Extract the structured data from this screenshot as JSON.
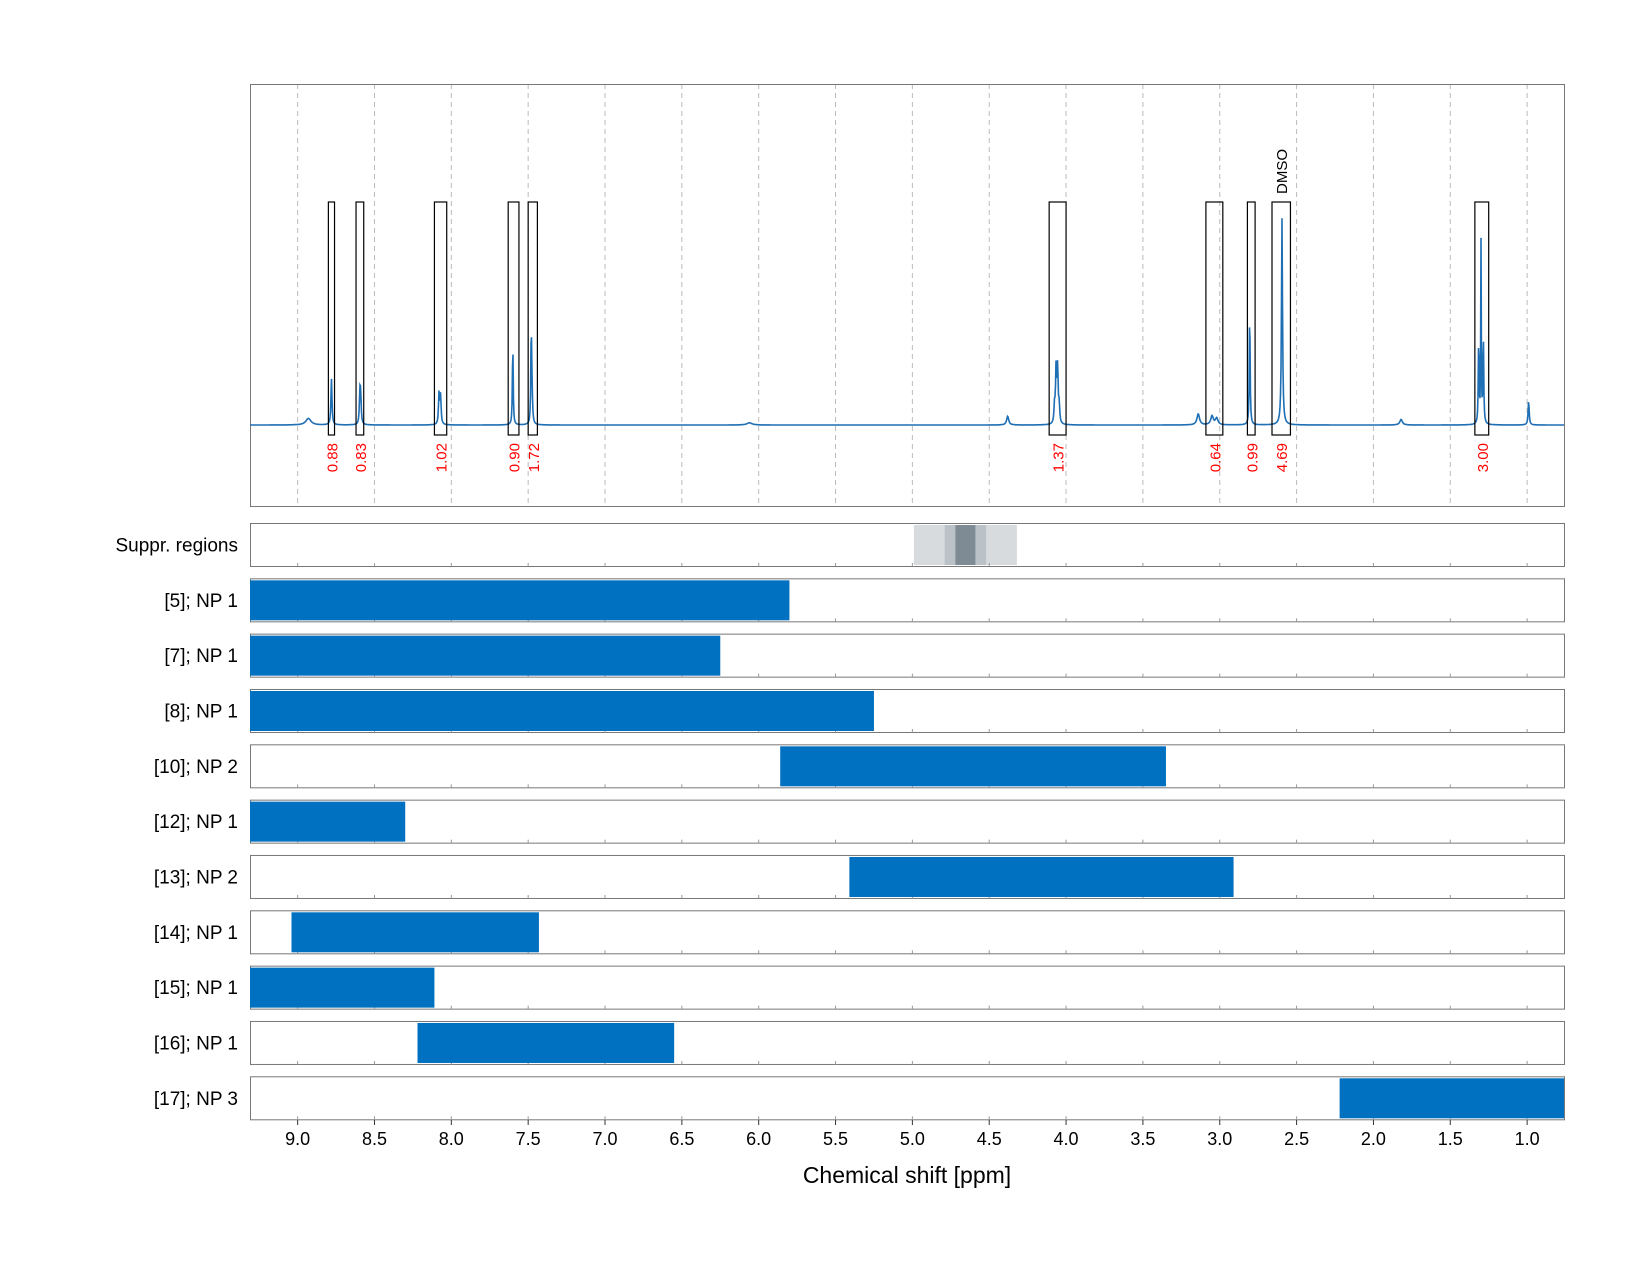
{
  "chart_data": {
    "type": "nmr-spectrum-with-ranges",
    "xlabel": "Chemical shift [ppm]",
    "xlim": [
      9.31,
      0.76
    ],
    "x_ticks": [
      "9.0",
      "8.5",
      "8.0",
      "7.5",
      "7.0",
      "6.5",
      "6.0",
      "5.5",
      "5.0",
      "4.5",
      "4.0",
      "3.5",
      "3.0",
      "2.5",
      "2.0",
      "1.5",
      "1.0"
    ],
    "colors": {
      "spectrum": "#1f6fb4",
      "integral": "#ff0000",
      "bar": "#0070c0",
      "suppression": "#7a8891",
      "grid": "#bbbbbb"
    },
    "integrals": [
      {
        "label": "0.88",
        "range": [
          8.8,
          8.76
        ]
      },
      {
        "label": "0.83",
        "range": [
          8.62,
          8.57
        ]
      },
      {
        "label": "1.02",
        "range": [
          8.11,
          8.03
        ]
      },
      {
        "label": "0.90",
        "range": [
          7.63,
          7.56
        ]
      },
      {
        "label": "1.72",
        "range": [
          7.5,
          7.44
        ]
      },
      {
        "label": "1.37",
        "range": [
          4.11,
          4.0
        ]
      },
      {
        "label": "0.64",
        "range": [
          3.09,
          2.98
        ]
      },
      {
        "label": "0.99",
        "range": [
          2.82,
          2.77
        ]
      },
      {
        "label": "4.69",
        "range": [
          2.66,
          2.54
        ],
        "annotation": "DMSO"
      },
      {
        "label": "3.00",
        "range": [
          1.34,
          1.25
        ]
      }
    ],
    "peaks": [
      {
        "ppm": 8.93,
        "height": 0.03,
        "width": 0.02
      },
      {
        "ppm": 8.78,
        "height": 0.21,
        "width": 0.004
      },
      {
        "ppm": 8.595,
        "height": 0.13,
        "width": 0.004
      },
      {
        "ppm": 8.59,
        "height": 0.12,
        "width": 0.004
      },
      {
        "ppm": 8.08,
        "height": 0.14,
        "width": 0.004
      },
      {
        "ppm": 8.07,
        "height": 0.13,
        "width": 0.004
      },
      {
        "ppm": 7.6,
        "height": 0.38,
        "width": 0.003
      },
      {
        "ppm": 7.48,
        "height": 0.43,
        "width": 0.003
      },
      {
        "ppm": 7.475,
        "height": 0.12,
        "width": 0.004
      },
      {
        "ppm": 6.06,
        "height": 0.01,
        "width": 0.02
      },
      {
        "ppm": 4.38,
        "height": 0.04,
        "width": 0.008
      },
      {
        "ppm": 4.065,
        "height": 0.25,
        "width": 0.004
      },
      {
        "ppm": 4.055,
        "height": 0.25,
        "width": 0.004
      },
      {
        "ppm": 4.045,
        "height": 0.08,
        "width": 0.004
      },
      {
        "ppm": 4.075,
        "height": 0.08,
        "width": 0.004
      },
      {
        "ppm": 3.14,
        "height": 0.05,
        "width": 0.01
      },
      {
        "ppm": 3.05,
        "height": 0.04,
        "width": 0.01
      },
      {
        "ppm": 3.02,
        "height": 0.03,
        "width": 0.01
      },
      {
        "ppm": 2.805,
        "height": 0.54,
        "width": 0.003
      },
      {
        "ppm": 2.595,
        "height": 0.94,
        "width": 0.004
      },
      {
        "ppm": 1.82,
        "height": 0.025,
        "width": 0.01
      },
      {
        "ppm": 1.3,
        "height": 0.82,
        "width": 0.002
      },
      {
        "ppm": 1.285,
        "height": 0.42,
        "width": 0.003
      },
      {
        "ppm": 1.315,
        "height": 0.4,
        "width": 0.003
      },
      {
        "ppm": 0.99,
        "height": 0.11,
        "width": 0.004
      }
    ],
    "suppression": {
      "label": "Suppr. regions",
      "bands": [
        {
          "range": [
            4.99,
            4.32
          ],
          "level": 0.2
        },
        {
          "range": [
            4.79,
            4.52
          ],
          "level": 0.45
        },
        {
          "range": [
            4.72,
            4.59
          ],
          "level": 1.0
        }
      ]
    },
    "ranges": [
      {
        "label": "[5]; NP 1",
        "from": 9.31,
        "to": 5.8
      },
      {
        "label": "[7]; NP 1",
        "from": 9.31,
        "to": 6.25
      },
      {
        "label": "[8]; NP 1",
        "from": 9.31,
        "to": 5.25
      },
      {
        "label": "[10]; NP 2",
        "from": 5.86,
        "to": 3.35
      },
      {
        "label": "[12]; NP 1",
        "from": 9.31,
        "to": 8.3
      },
      {
        "label": "[13]; NP 2",
        "from": 5.41,
        "to": 2.91
      },
      {
        "label": "[14]; NP 1",
        "from": 9.04,
        "to": 7.43
      },
      {
        "label": "[15]; NP 1",
        "from": 9.31,
        "to": 8.11
      },
      {
        "label": "[16]; NP 1",
        "from": 8.22,
        "to": 6.55
      },
      {
        "label": "[17]; NP 3",
        "from": 2.22,
        "to": 0.76
      }
    ]
  }
}
